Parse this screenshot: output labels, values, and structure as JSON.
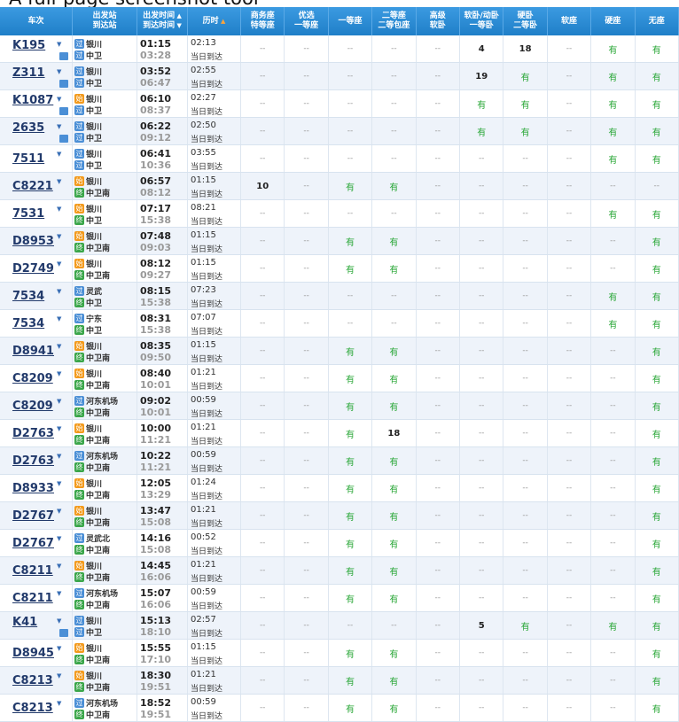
{
  "watermark": "A full-page screenshot tool",
  "header": {
    "columns": [
      [
        "车次"
      ],
      [
        "出发站",
        "到达站"
      ],
      [
        "出发时间",
        "到达时间"
      ],
      [
        "历时"
      ],
      [
        "商务座",
        "特等座"
      ],
      [
        "优选",
        "一等座"
      ],
      [
        "一等座"
      ],
      [
        "二等座",
        "二等包座"
      ],
      [
        "高级",
        "软卧"
      ],
      [
        "软卧/动卧",
        "一等卧"
      ],
      [
        "硬卧",
        "二等卧"
      ],
      [
        "软座"
      ],
      [
        "硬座"
      ],
      [
        "无座"
      ]
    ]
  },
  "rows": [
    {
      "train": "K195",
      "from": "银川",
      "from_tag": "过",
      "to": "中卫",
      "to_tag": "过",
      "depart": "01:15",
      "arrive": "03:28",
      "duration": "02:13",
      "arrival_day": "当日到达",
      "seats": [
        "--",
        "--",
        "--",
        "--",
        "--",
        4,
        18,
        "--",
        "有",
        "有"
      ]
    },
    {
      "train": "Z311",
      "from": "银川",
      "from_tag": "过",
      "to": "中卫",
      "to_tag": "过",
      "depart": "03:52",
      "arrive": "06:47",
      "duration": "02:55",
      "arrival_day": "当日到达",
      "seats": [
        "--",
        "--",
        "--",
        "--",
        "--",
        19,
        "有",
        "--",
        "有",
        "有"
      ]
    },
    {
      "train": "K1087",
      "from": "银川",
      "from_tag": "始",
      "to": "中卫",
      "to_tag": "过",
      "depart": "06:10",
      "arrive": "08:37",
      "duration": "02:27",
      "arrival_day": "当日到达",
      "seats": [
        "--",
        "--",
        "--",
        "--",
        "--",
        "有",
        "有",
        "--",
        "有",
        "有"
      ]
    },
    {
      "train": "2635",
      "from": "银川",
      "from_tag": "过",
      "to": "中卫",
      "to_tag": "过",
      "depart": "06:22",
      "arrive": "09:12",
      "duration": "02:50",
      "arrival_day": "当日到达",
      "seats": [
        "--",
        "--",
        "--",
        "--",
        "--",
        "有",
        "有",
        "--",
        "有",
        "有"
      ]
    },
    {
      "train": "7511",
      "from": "银川",
      "from_tag": "过",
      "to": "中卫",
      "to_tag": "过",
      "depart": "06:41",
      "arrive": "10:36",
      "duration": "03:55",
      "arrival_day": "当日到达",
      "seats": [
        "--",
        "--",
        "--",
        "--",
        "--",
        "--",
        "--",
        "--",
        "有",
        "有"
      ]
    },
    {
      "train": "C8221",
      "from": "银川",
      "from_tag": "始",
      "to": "中卫南",
      "to_tag": "终",
      "depart": "06:57",
      "arrive": "08:12",
      "duration": "01:15",
      "arrival_day": "当日到达",
      "seats": [
        10,
        "--",
        "有",
        "有",
        "--",
        "--",
        "--",
        "--",
        "--",
        "--"
      ]
    },
    {
      "train": "7531",
      "from": "银川",
      "from_tag": "始",
      "to": "中卫",
      "to_tag": "终",
      "depart": "07:17",
      "arrive": "15:38",
      "duration": "08:21",
      "arrival_day": "当日到达",
      "seats": [
        "--",
        "--",
        "--",
        "--",
        "--",
        "--",
        "--",
        "--",
        "有",
        "有"
      ]
    },
    {
      "train": "D8953",
      "from": "银川",
      "from_tag": "始",
      "to": "中卫南",
      "to_tag": "终",
      "depart": "07:48",
      "arrive": "09:03",
      "duration": "01:15",
      "arrival_day": "当日到达",
      "seats": [
        "--",
        "--",
        "有",
        "有",
        "--",
        "--",
        "--",
        "--",
        "--",
        "有"
      ]
    },
    {
      "train": "D2749",
      "from": "银川",
      "from_tag": "始",
      "to": "中卫南",
      "to_tag": "终",
      "depart": "08:12",
      "arrive": "09:27",
      "duration": "01:15",
      "arrival_day": "当日到达",
      "seats": [
        "--",
        "--",
        "有",
        "有",
        "--",
        "--",
        "--",
        "--",
        "--",
        "有"
      ]
    },
    {
      "train": "7534",
      "from": "灵武",
      "from_tag": "过",
      "to": "中卫",
      "to_tag": "终",
      "depart": "08:15",
      "arrive": "15:38",
      "duration": "07:23",
      "arrival_day": "当日到达",
      "seats": [
        "--",
        "--",
        "--",
        "--",
        "--",
        "--",
        "--",
        "--",
        "有",
        "有"
      ]
    },
    {
      "train": "7534",
      "from": "宁东",
      "from_tag": "过",
      "to": "中卫",
      "to_tag": "终",
      "depart": "08:31",
      "arrive": "15:38",
      "duration": "07:07",
      "arrival_day": "当日到达",
      "seats": [
        "--",
        "--",
        "--",
        "--",
        "--",
        "--",
        "--",
        "--",
        "有",
        "有"
      ]
    },
    {
      "train": "D8941",
      "from": "银川",
      "from_tag": "始",
      "to": "中卫南",
      "to_tag": "终",
      "depart": "08:35",
      "arrive": "09:50",
      "duration": "01:15",
      "arrival_day": "当日到达",
      "seats": [
        "--",
        "--",
        "有",
        "有",
        "--",
        "--",
        "--",
        "--",
        "--",
        "有"
      ]
    },
    {
      "train": "C8209",
      "from": "银川",
      "from_tag": "始",
      "to": "中卫南",
      "to_tag": "终",
      "depart": "08:40",
      "arrive": "10:01",
      "duration": "01:21",
      "arrival_day": "当日到达",
      "seats": [
        "--",
        "--",
        "有",
        "有",
        "--",
        "--",
        "--",
        "--",
        "--",
        "有"
      ]
    },
    {
      "train": "C8209",
      "from": "河东机场",
      "from_tag": "过",
      "to": "中卫南",
      "to_tag": "终",
      "depart": "09:02",
      "arrive": "10:01",
      "duration": "00:59",
      "arrival_day": "当日到达",
      "seats": [
        "--",
        "--",
        "有",
        "有",
        "--",
        "--",
        "--",
        "--",
        "--",
        "有"
      ]
    },
    {
      "train": "D2763",
      "from": "银川",
      "from_tag": "始",
      "to": "中卫南",
      "to_tag": "终",
      "depart": "10:00",
      "arrive": "11:21",
      "duration": "01:21",
      "arrival_day": "当日到达",
      "seats": [
        "--",
        "--",
        "有",
        18,
        "--",
        "--",
        "--",
        "--",
        "--",
        "有"
      ]
    },
    {
      "train": "D2763",
      "from": "河东机场",
      "from_tag": "过",
      "to": "中卫南",
      "to_tag": "终",
      "depart": "10:22",
      "arrive": "11:21",
      "duration": "00:59",
      "arrival_day": "当日到达",
      "seats": [
        "--",
        "--",
        "有",
        "有",
        "--",
        "--",
        "--",
        "--",
        "--",
        "有"
      ]
    },
    {
      "train": "D8933",
      "from": "银川",
      "from_tag": "始",
      "to": "中卫南",
      "to_tag": "终",
      "depart": "12:05",
      "arrive": "13:29",
      "duration": "01:24",
      "arrival_day": "当日到达",
      "seats": [
        "--",
        "--",
        "有",
        "有",
        "--",
        "--",
        "--",
        "--",
        "--",
        "有"
      ]
    },
    {
      "train": "D2767",
      "from": "银川",
      "from_tag": "始",
      "to": "中卫南",
      "to_tag": "终",
      "depart": "13:47",
      "arrive": "15:08",
      "duration": "01:21",
      "arrival_day": "当日到达",
      "seats": [
        "--",
        "--",
        "有",
        "有",
        "--",
        "--",
        "--",
        "--",
        "--",
        "有"
      ]
    },
    {
      "train": "D2767",
      "from": "灵武北",
      "from_tag": "过",
      "to": "中卫南",
      "to_tag": "终",
      "depart": "14:16",
      "arrive": "15:08",
      "duration": "00:52",
      "arrival_day": "当日到达",
      "seats": [
        "--",
        "--",
        "有",
        "有",
        "--",
        "--",
        "--",
        "--",
        "--",
        "有"
      ]
    },
    {
      "train": "C8211",
      "from": "银川",
      "from_tag": "始",
      "to": "中卫南",
      "to_tag": "终",
      "depart": "14:45",
      "arrive": "16:06",
      "duration": "01:21",
      "arrival_day": "当日到达",
      "seats": [
        "--",
        "--",
        "有",
        "有",
        "--",
        "--",
        "--",
        "--",
        "--",
        "有"
      ]
    },
    {
      "train": "C8211",
      "from": "河东机场",
      "from_tag": "过",
      "to": "中卫南",
      "to_tag": "终",
      "depart": "15:07",
      "arrive": "16:06",
      "duration": "00:59",
      "arrival_day": "当日到达",
      "seats": [
        "--",
        "--",
        "有",
        "有",
        "--",
        "--",
        "--",
        "--",
        "--",
        "有"
      ]
    },
    {
      "train": "K41",
      "from": "银川",
      "from_tag": "过",
      "to": "中卫",
      "to_tag": "过",
      "depart": "15:13",
      "arrive": "18:10",
      "duration": "02:57",
      "arrival_day": "当日到达",
      "seats": [
        "--",
        "--",
        "--",
        "--",
        "--",
        5,
        "有",
        "--",
        "有",
        "有"
      ]
    },
    {
      "train": "D8945",
      "from": "银川",
      "from_tag": "始",
      "to": "中卫南",
      "to_tag": "终",
      "depart": "15:55",
      "arrive": "17:10",
      "duration": "01:15",
      "arrival_day": "当日到达",
      "seats": [
        "--",
        "--",
        "有",
        "有",
        "--",
        "--",
        "--",
        "--",
        "--",
        "有"
      ]
    },
    {
      "train": "C8213",
      "from": "银川",
      "from_tag": "始",
      "to": "中卫南",
      "to_tag": "终",
      "depart": "18:30",
      "arrive": "19:51",
      "duration": "01:21",
      "arrival_day": "当日到达",
      "seats": [
        "--",
        "--",
        "有",
        "有",
        "--",
        "--",
        "--",
        "--",
        "--",
        "有"
      ]
    },
    {
      "train": "C8213",
      "from": "河东机场",
      "from_tag": "过",
      "to": "中卫南",
      "to_tag": "终",
      "depart": "18:52",
      "arrive": "19:51",
      "duration": "00:59",
      "arrival_day": "当日到达",
      "seats": [
        "--",
        "--",
        "有",
        "有",
        "--",
        "--",
        "--",
        "--",
        "--",
        "有"
      ]
    }
  ]
}
